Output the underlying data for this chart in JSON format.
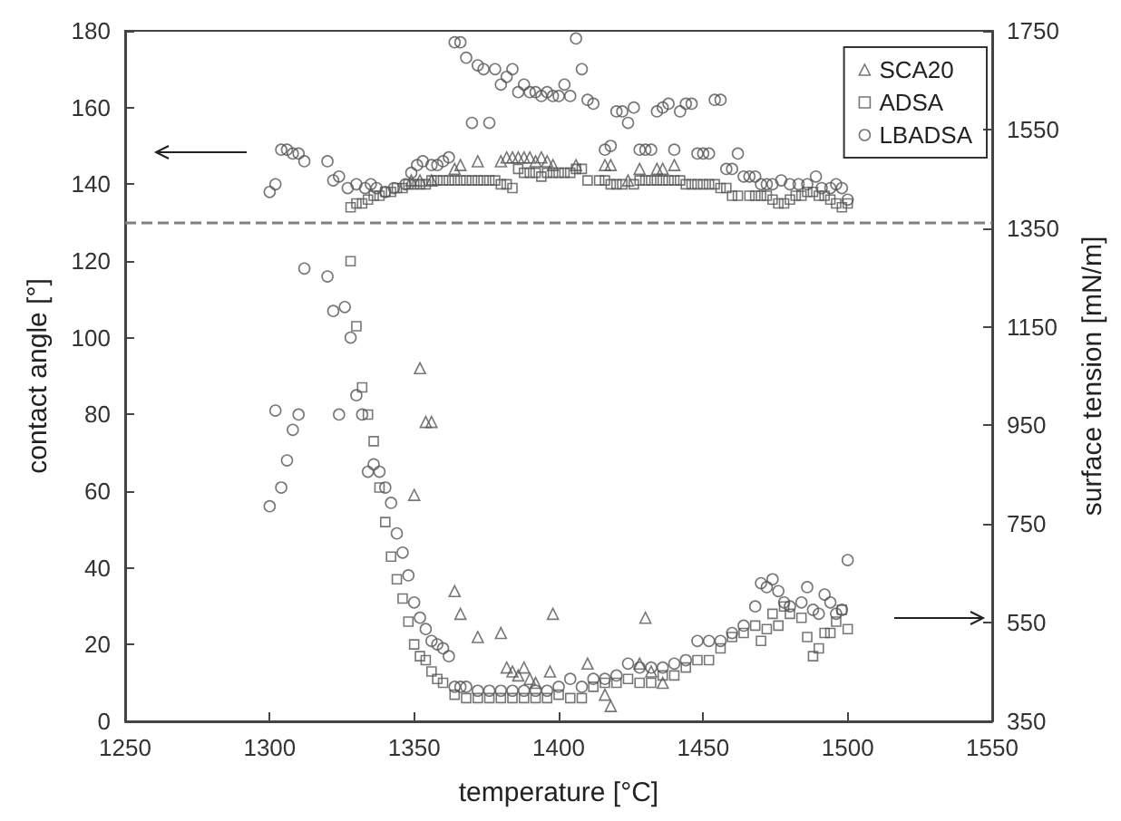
{
  "chart_data": {
    "type": "scatter",
    "xlabel": "temperature [°C]",
    "ylabel": "contact angle [°]",
    "y2label": "surface tension [mN/m]",
    "xlim": [
      1250,
      1550
    ],
    "xticks": [
      1250,
      1300,
      1350,
      1400,
      1450,
      1500,
      1550
    ],
    "ylim": [
      0,
      180
    ],
    "yticks": [
      0,
      20,
      40,
      60,
      80,
      100,
      120,
      140,
      160,
      180
    ],
    "y2lim": [
      350,
      1750
    ],
    "y2ticks": [
      350,
      550,
      750,
      950,
      1150,
      1350,
      1550,
      1750
    ],
    "legend": "top right",
    "ref_lines": [
      {
        "axis": "y",
        "value": 130,
        "color": "#808080",
        "line_style": "dashed"
      }
    ],
    "series": [
      {
        "name": "SCA20",
        "color": "#555555",
        "marker": "triangle",
        "x": [
          1349,
          1352,
          1356,
          1364,
          1366,
          1372,
          1380,
          1382,
          1384,
          1386,
          1388,
          1390,
          1392,
          1394,
          1396,
          1398,
          1406,
          1416,
          1418,
          1424,
          1428,
          1434,
          1436,
          1440
        ],
        "values": [
          141,
          141,
          141,
          144,
          145,
          146,
          146,
          147,
          147,
          147,
          147,
          147,
          146,
          147,
          146,
          145,
          145,
          145,
          145,
          141,
          144,
          144,
          144,
          145
        ]
      },
      {
        "name": "ADSA",
        "color": "#555555",
        "marker": "square",
        "x": [
          1328,
          1330,
          1332,
          1334,
          1336,
          1338,
          1340,
          1342,
          1344,
          1346,
          1348,
          1350,
          1352,
          1354,
          1356,
          1358,
          1360,
          1362,
          1364,
          1366,
          1368,
          1370,
          1372,
          1374,
          1376,
          1378,
          1380,
          1382,
          1384,
          1386,
          1388,
          1390,
          1392,
          1394,
          1396,
          1398,
          1400,
          1402,
          1404,
          1406,
          1408,
          1410,
          1414,
          1416,
          1418,
          1420,
          1422,
          1426,
          1428,
          1430,
          1432,
          1434,
          1436,
          1438,
          1440,
          1442,
          1444,
          1446,
          1448,
          1450,
          1452,
          1454,
          1456,
          1458,
          1460,
          1462,
          1466,
          1468,
          1470,
          1472,
          1474,
          1476,
          1478,
          1480,
          1482,
          1484,
          1486,
          1488,
          1490,
          1492,
          1494,
          1496,
          1498,
          1500
        ],
        "values": [
          134,
          135,
          135,
          136,
          137,
          137,
          138,
          138,
          139,
          139,
          140,
          140,
          140,
          140,
          141,
          141,
          141,
          141,
          141,
          141,
          141,
          141,
          141,
          141,
          141,
          141,
          140,
          140,
          139,
          144,
          143,
          143,
          143,
          142,
          143,
          143,
          143,
          143,
          143,
          144,
          144,
          141,
          141,
          141,
          140,
          140,
          140,
          140,
          141,
          141,
          141,
          141,
          141,
          141,
          141,
          141,
          140,
          140,
          140,
          140,
          140,
          140,
          139,
          139,
          137,
          137,
          137,
          137,
          137,
          137,
          136,
          135,
          135,
          136,
          137,
          137,
          138,
          138,
          137,
          137,
          136,
          135,
          134,
          135
        ]
      },
      {
        "name": "LBADSA",
        "color": "#555555",
        "marker": "circle",
        "x": [
          1300,
          1302,
          1304,
          1306,
          1308,
          1310,
          1312,
          1320,
          1322,
          1324,
          1327,
          1330,
          1333,
          1335,
          1337,
          1340,
          1343,
          1347,
          1349,
          1351,
          1353,
          1356,
          1358,
          1360,
          1362,
          1364,
          1366,
          1368,
          1370,
          1372,
          1374,
          1376,
          1378,
          1380,
          1382,
          1384,
          1386,
          1388,
          1390,
          1392,
          1394,
          1396,
          1398,
          1400,
          1402,
          1404,
          1406,
          1408,
          1410,
          1412,
          1416,
          1418,
          1420,
          1422,
          1424,
          1426,
          1428,
          1430,
          1432,
          1434,
          1436,
          1438,
          1440,
          1442,
          1444,
          1446,
          1448,
          1450,
          1452,
          1454,
          1456,
          1458,
          1460,
          1462,
          1464,
          1466,
          1468,
          1470,
          1472,
          1474,
          1477,
          1480,
          1483,
          1486,
          1489,
          1491,
          1494,
          1496,
          1498,
          1500
        ],
        "values": [
          138,
          140,
          149,
          149,
          148,
          148,
          146,
          146,
          141,
          142,
          139,
          140,
          139,
          140,
          139,
          138,
          139,
          140,
          143,
          145,
          146,
          145,
          145,
          146,
          147,
          177,
          177,
          173,
          156,
          171,
          170,
          156,
          170,
          166,
          168,
          170,
          164,
          166,
          164,
          164,
          163,
          164,
          163,
          163,
          166,
          163,
          178,
          170,
          162,
          161,
          149,
          150,
          159,
          159,
          156,
          160,
          149,
          149,
          149,
          159,
          160,
          161,
          149,
          159,
          161,
          161,
          148,
          148,
          148,
          162,
          162,
          144,
          144,
          148,
          142,
          142,
          142,
          140,
          140,
          140,
          141,
          140,
          140,
          140,
          142,
          139,
          139,
          140,
          139,
          136
        ]
      },
      {
        "color": "#555555",
        "marker": "triangle",
        "axis": "y2",
        "x": [
          1350,
          1352,
          1354,
          1356,
          1364,
          1366,
          1372,
          1380,
          1382,
          1384,
          1386,
          1388,
          1390,
          1392,
          1397,
          1398,
          1410,
          1416,
          1418,
          1428,
          1430,
          1432,
          1436
        ],
        "values": [
          809,
          1066,
          957,
          957,
          614,
          568,
          521,
          529,
          459,
          451,
          443,
          459,
          436,
          428,
          451,
          568,
          467,
          404,
          381,
          467,
          560,
          451,
          428
        ]
      },
      {
        "color": "#555555",
        "marker": "square",
        "axis": "y2",
        "x": [
          1328,
          1330,
          1332,
          1334,
          1336,
          1338,
          1340,
          1342,
          1344,
          1346,
          1348,
          1350,
          1352,
          1354,
          1356,
          1358,
          1360,
          1364,
          1368,
          1372,
          1376,
          1380,
          1384,
          1388,
          1392,
          1396,
          1400,
          1404,
          1408,
          1412,
          1416,
          1420,
          1424,
          1428,
          1432,
          1436,
          1440,
          1444,
          1448,
          1452,
          1456,
          1460,
          1464,
          1468,
          1470,
          1472,
          1474,
          1476,
          1478,
          1480,
          1484,
          1486,
          1488,
          1490,
          1492,
          1494,
          1496,
          1498,
          1500
        ],
        "values": [
          1283,
          1151,
          1027,
          972,
          918,
          824,
          754,
          684,
          638,
          599,
          552,
          506,
          482,
          474,
          451,
          436,
          428,
          404,
          397,
          397,
          397,
          397,
          397,
          397,
          397,
          397,
          404,
          397,
          397,
          420,
          428,
          428,
          436,
          428,
          428,
          443,
          443,
          459,
          474,
          474,
          498,
          521,
          529,
          544,
          513,
          537,
          568,
          544,
          583,
          568,
          560,
          521,
          482,
          498,
          529,
          529,
          552,
          576,
          537
        ]
      },
      {
        "color": "#555555",
        "marker": "circle",
        "axis": "y2",
        "x": [
          1300,
          1302,
          1304,
          1306,
          1308,
          1310,
          1312,
          1320,
          1322,
          1324,
          1326,
          1328,
          1330,
          1332,
          1334,
          1336,
          1338,
          1340,
          1342,
          1344,
          1346,
          1348,
          1350,
          1352,
          1354,
          1356,
          1358,
          1360,
          1362,
          1364,
          1366,
          1368,
          1372,
          1376,
          1380,
          1384,
          1388,
          1392,
          1396,
          1400,
          1404,
          1408,
          1412,
          1416,
          1420,
          1424,
          1428,
          1432,
          1436,
          1440,
          1444,
          1448,
          1452,
          1456,
          1460,
          1464,
          1468,
          1470,
          1472,
          1474,
          1476,
          1478,
          1480,
          1484,
          1486,
          1488,
          1490,
          1492,
          1494,
          1496,
          1498,
          1500
        ],
        "values": [
          786,
          980,
          824,
          879,
          941,
          972,
          1268,
          1252,
          1182,
          972,
          1190,
          1128,
          1011,
          972,
          856,
          871,
          856,
          824,
          793,
          731,
          692,
          646,
          591,
          560,
          537,
          513,
          506,
          498,
          482,
          420,
          420,
          420,
          412,
          412,
          412,
          412,
          412,
          412,
          412,
          420,
          436,
          420,
          436,
          436,
          443,
          467,
          459,
          459,
          459,
          467,
          474,
          513,
          513,
          513,
          529,
          544,
          583,
          630,
          622,
          638,
          614,
          591,
          583,
          591,
          622,
          576,
          568,
          607,
          591,
          568,
          576,
          677
        ]
      }
    ]
  }
}
